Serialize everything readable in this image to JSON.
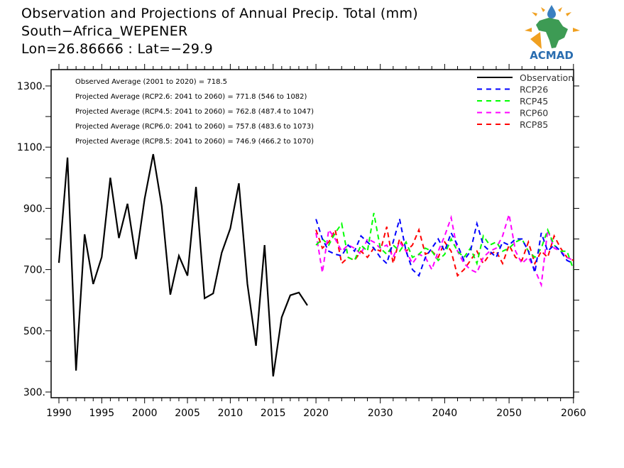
{
  "header": {
    "title_line1": "Observation and Projections of Annual Precip. Total (mm)",
    "title_line2": "South−Africa_WEPENER",
    "title_line3": "Lon=26.86666 : Lat=−29.9",
    "logo_text": "ACMAD"
  },
  "chart_data": {
    "type": "line",
    "title": "Observation and Projections of Annual Precip. Total (mm)",
    "xlabel": "",
    "ylabel": "",
    "ylim": [
      280,
      1340
    ],
    "xlim": [
      1989,
      2060
    ],
    "y_ticks": [
      "1300.",
      "1100.",
      "900.",
      "700.",
      "500.",
      "300."
    ],
    "y_tick_values": [
      1300,
      1100,
      900,
      700,
      500,
      300
    ],
    "x_ticks": [
      "1990",
      "1995",
      "2000",
      "2005",
      "2010",
      "2015",
      "2020",
      "2030",
      "2040",
      "2050",
      "2060"
    ],
    "x_tick_values": [
      1990,
      1995,
      2000,
      2005,
      2010,
      2015,
      2020,
      2030,
      2040,
      2050,
      2060
    ],
    "legend_position": "top-right",
    "annotations": [
      "Observed Average (2001 to 2020) = 718.5",
      "Projected Average (RCP2.6: 2041 to 2060) = 771.8 (546 to 1082)",
      "Projected Average (RCP4.5: 2041 to 2060) = 762.8 (487.4 to 1047)",
      "Projected Average (RCP6.0: 2041 to 2060) = 757.8 (483.6 to 1073)",
      "Projected Average (RCP8.5: 2041 to 2060) = 746.9 (466.2 to 1070)"
    ],
    "series": [
      {
        "name": "Observation",
        "color": "#000000",
        "dash": false,
        "x_start": 1990,
        "values": [
          722,
          1066,
          370,
          815,
          653,
          741,
          1000,
          803,
          915,
          734,
          931,
          1077,
          908,
          618,
          745,
          680,
          970,
          606,
          622,
          755,
          834,
          982,
          653,
          451,
          780,
          351,
          544,
          616,
          625,
          583
        ]
      },
      {
        "name": "RCP26",
        "color": "#0000ff",
        "dash": true,
        "x_start": 2020,
        "values": [
          865,
          800,
          760,
          750,
          745,
          780,
          760,
          810,
          790,
          770,
          740,
          720,
          790,
          865,
          760,
          700,
          680,
          740,
          770,
          800,
          760,
          820,
          780,
          730,
          760,
          850,
          780,
          760,
          740,
          790,
          780,
          800,
          800,
          760,
          690,
          820,
          760,
          780,
          760,
          730,
          720
        ]
      },
      {
        "name": "RCP45",
        "color": "#00ff00",
        "dash": true,
        "x_start": 2020,
        "values": [
          780,
          800,
          780,
          820,
          850,
          740,
          730,
          780,
          760,
          885,
          770,
          750,
          780,
          760,
          790,
          740,
          750,
          770,
          760,
          730,
          750,
          800,
          760,
          740,
          770,
          720,
          810,
          780,
          790,
          760,
          770,
          790,
          800,
          760,
          740,
          770,
          830,
          780,
          760,
          760,
          700
        ]
      },
      {
        "name": "RCP60",
        "color": "#ff00ff",
        "dash": true,
        "x_start": 2020,
        "values": [
          820,
          690,
          830,
          800,
          760,
          780,
          770,
          750,
          800,
          790,
          770,
          780,
          740,
          790,
          760,
          720,
          750,
          740,
          700,
          760,
          810,
          870,
          760,
          720,
          700,
          690,
          740,
          760,
          770,
          810,
          880,
          760,
          720,
          740,
          700,
          650,
          830,
          770,
          760,
          740,
          730
        ]
      },
      {
        "name": "RCP85",
        "color": "#ff0000",
        "dash": true,
        "x_start": 2020,
        "values": [
          830,
          770,
          790,
          830,
          720,
          740,
          730,
          760,
          740,
          770,
          760,
          840,
          720,
          800,
          760,
          780,
          830,
          750,
          760,
          740,
          790,
          760,
          680,
          700,
          730,
          760,
          720,
          750,
          760,
          720,
          780,
          740,
          730,
          790,
          720,
          760,
          740,
          810,
          770,
          740,
          730
        ]
      }
    ]
  }
}
